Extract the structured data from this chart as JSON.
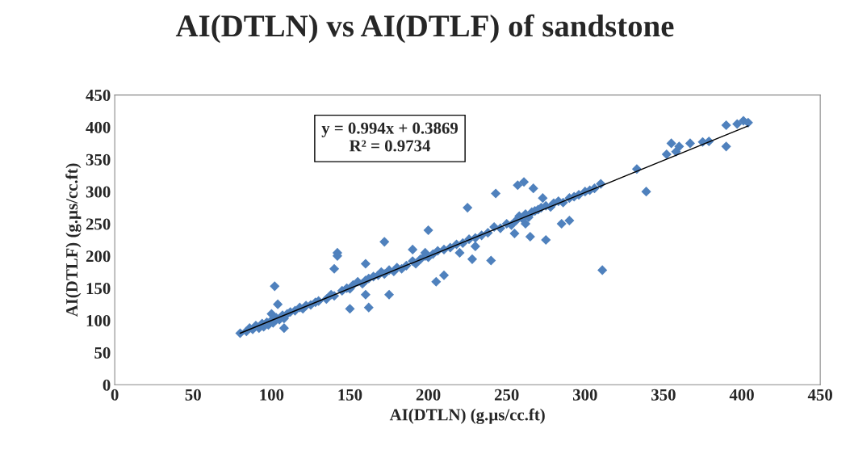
{
  "chart_data": {
    "type": "scatter",
    "title": "AI(DTLN) vs AI(DTLF) of sandstone",
    "xlabel": "AI(DTLN) (g.µs/cc.ft)",
    "ylabel": "AI(DTLF) (g.µs/cc.ft)",
    "annotations": [
      "y = 0.994x + 0.3869\nR² = 0.9734"
    ],
    "xlim": [
      0,
      450
    ],
    "ylim": [
      0,
      450
    ],
    "xticks": [
      0,
      50,
      100,
      150,
      200,
      250,
      300,
      350,
      400,
      450
    ],
    "yticks": [
      0,
      50,
      100,
      150,
      200,
      250,
      300,
      350,
      400,
      450
    ],
    "grid": false,
    "legend": false,
    "marker": "diamond",
    "series": [
      {
        "color": "#4f81bd",
        "x": [
          80,
          84,
          86,
          88,
          90,
          92,
          94,
          95,
          97,
          98,
          100,
          101,
          103,
          105,
          107,
          108,
          110,
          112,
          115,
          118,
          120,
          122,
          125,
          128,
          130,
          135,
          138,
          140,
          142,
          142,
          145,
          148,
          150,
          152,
          155,
          158,
          160,
          162,
          165,
          168,
          170,
          172,
          175,
          178,
          180,
          183,
          186,
          190,
          192,
          195,
          198,
          200,
          203,
          206,
          210,
          214,
          218,
          222,
          226,
          230,
          234,
          238,
          242,
          246,
          250,
          253,
          256,
          258,
          260,
          262,
          264,
          266,
          268,
          270,
          272,
          275,
          278,
          280,
          283,
          286,
          290,
          293,
          296,
          300,
          303,
          306,
          310,
          102,
          140,
          172,
          160,
          225,
          243,
          261,
          267,
          257,
          273,
          311,
          339,
          333,
          390,
          401,
          397,
          390,
          404,
          355,
          358,
          352,
          360,
          375,
          379,
          367,
          150,
          162,
          160,
          175,
          205,
          210,
          228,
          240,
          230,
          265,
          275,
          262,
          285,
          290,
          200,
          198,
          190,
          220,
          255,
          100,
          104,
          108
        ],
        "values": [
          80,
          83,
          88,
          86,
          92,
          88,
          95,
          90,
          97,
          93,
          100,
          96,
          104,
          101,
          108,
          103,
          110,
          113,
          115,
          120,
          118,
          123,
          124,
          128,
          130,
          133,
          140,
          138,
          205,
          200,
          146,
          150,
          149,
          155,
          160,
          157,
          162,
          165,
          168,
          170,
          175,
          172,
          178,
          176,
          182,
          180,
          185,
          192,
          188,
          195,
          200,
          198,
          203,
          208,
          210,
          213,
          218,
          220,
          226,
          228,
          232,
          236,
          245,
          243,
          250,
          248,
          255,
          262,
          258,
          265,
          260,
          268,
          270,
          272,
          275,
          278,
          276,
          282,
          285,
          283,
          290,
          292,
          295,
          300,
          302,
          305,
          312,
          153,
          180,
          222,
          188,
          275,
          297,
          315,
          305,
          310,
          290,
          178,
          300,
          335,
          370,
          410,
          405,
          403,
          407,
          375,
          362,
          358,
          370,
          377,
          378,
          375,
          118,
          120,
          140,
          140,
          160,
          170,
          195,
          193,
          215,
          230,
          225,
          250,
          250,
          255,
          240,
          205,
          210,
          205,
          235,
          110,
          125,
          88
        ]
      },
      {
        "type": "line",
        "color": "#000000",
        "marker": "none",
        "x": [
          80,
          404
        ],
        "values": [
          80,
          402
        ]
      }
    ]
  }
}
